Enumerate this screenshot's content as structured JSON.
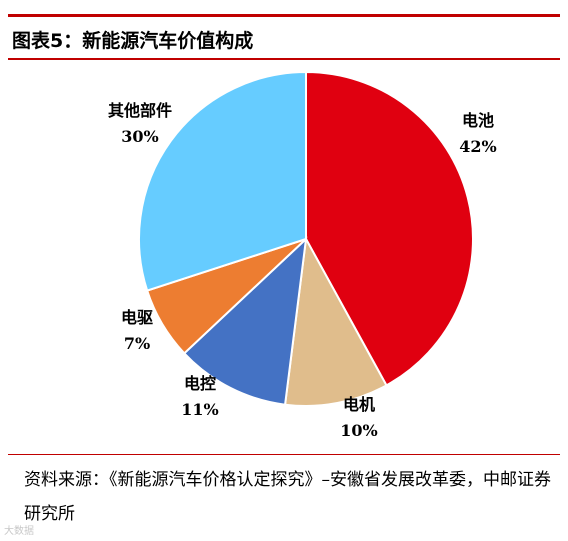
{
  "title": "图表5：新能源汽车价值构成",
  "source": "资料来源：《新能源汽车价格认定探究》–安徽省发展改革委，中邮证券研究所",
  "watermark": "大数据",
  "chart_data": {
    "type": "pie",
    "title": "图表5：新能源汽车价值构成",
    "categories": [
      "电池",
      "电机",
      "电控",
      "电驱",
      "其他部件"
    ],
    "values": [
      42,
      10,
      11,
      7,
      30
    ],
    "value_labels": [
      "42%",
      "10%",
      "11%",
      "7%",
      "30%"
    ],
    "colors": [
      "#e00010",
      "#e0bd8c",
      "#4472c4",
      "#ed7d31",
      "#66ccff"
    ],
    "start_angle": "12 o'clock",
    "direction": "clockwise",
    "legend": "none"
  }
}
